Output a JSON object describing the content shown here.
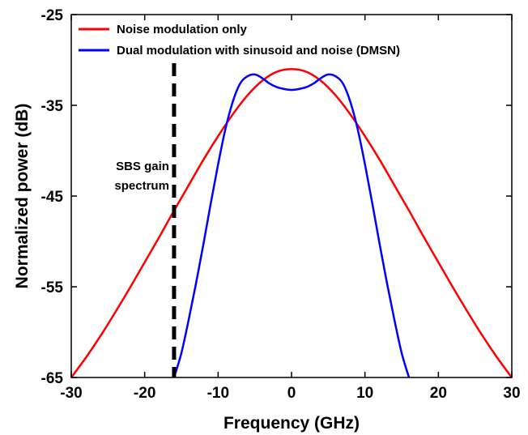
{
  "chart_data": {
    "type": "line",
    "title": "",
    "xlabel": "Frequency (GHz)",
    "ylabel": "Normalized power (dB)",
    "xlim": [
      -30,
      30
    ],
    "ylim": [
      -65,
      -25
    ],
    "xticks": [
      -30,
      -20,
      -10,
      0,
      10,
      20,
      30
    ],
    "yticks": [
      -25,
      -35,
      -45,
      -55,
      -65
    ],
    "grid": false,
    "legend_position": "top-left",
    "series": [
      {
        "name": "Noise modulation only",
        "color": "#ff0000",
        "x": [
          -30,
          -28,
          -26,
          -24,
          -22,
          -20,
          -18,
          -16,
          -14,
          -12,
          -10,
          -8,
          -6,
          -4,
          -2,
          0,
          2,
          4,
          6,
          8,
          10,
          12,
          14,
          16,
          18,
          20,
          22,
          24,
          26,
          28,
          30
        ],
        "y": [
          -65,
          -62.8,
          -60.4,
          -57.8,
          -55.1,
          -52.3,
          -49.5,
          -46.6,
          -43.8,
          -41.0,
          -38.4,
          -36.0,
          -33.9,
          -32.3,
          -31.3,
          -31.0,
          -31.3,
          -32.3,
          -33.9,
          -36.0,
          -38.4,
          -41.0,
          -43.8,
          -46.6,
          -49.5,
          -52.3,
          -55.1,
          -57.8,
          -60.4,
          -62.8,
          -65
        ]
      },
      {
        "name": "Dual modulation with sinusoid and noise (DMSN)",
        "color": "#0000ff",
        "x": [
          -16.0,
          -15.0,
          -14.0,
          -13.0,
          -12.0,
          -11.0,
          -10.0,
          -9.0,
          -8.0,
          -7.0,
          -6.0,
          -5.0,
          -4.0,
          -3.0,
          -2.0,
          -1.0,
          0,
          1.0,
          2.0,
          3.0,
          4.0,
          5.0,
          6.0,
          7.0,
          8.0,
          9.0,
          10.0,
          11.0,
          12.0,
          13.0,
          14.0,
          15.0,
          16.0
        ],
        "y": [
          -65,
          -62.3,
          -58.6,
          -54.6,
          -50.3,
          -45.8,
          -41.5,
          -37.6,
          -34.6,
          -32.6,
          -31.8,
          -31.6,
          -32.0,
          -32.6,
          -33.0,
          -33.2,
          -33.3,
          -33.2,
          -33.0,
          -32.6,
          -32.0,
          -31.6,
          -31.8,
          -32.6,
          -34.6,
          -37.6,
          -41.5,
          -45.8,
          -50.3,
          -54.6,
          -58.6,
          -62.3,
          -65
        ]
      }
    ],
    "annotations": [
      {
        "text_lines": [
          "SBS gain",
          "spectrum"
        ],
        "marker": "dashed vertical line",
        "x": -16
      }
    ]
  }
}
